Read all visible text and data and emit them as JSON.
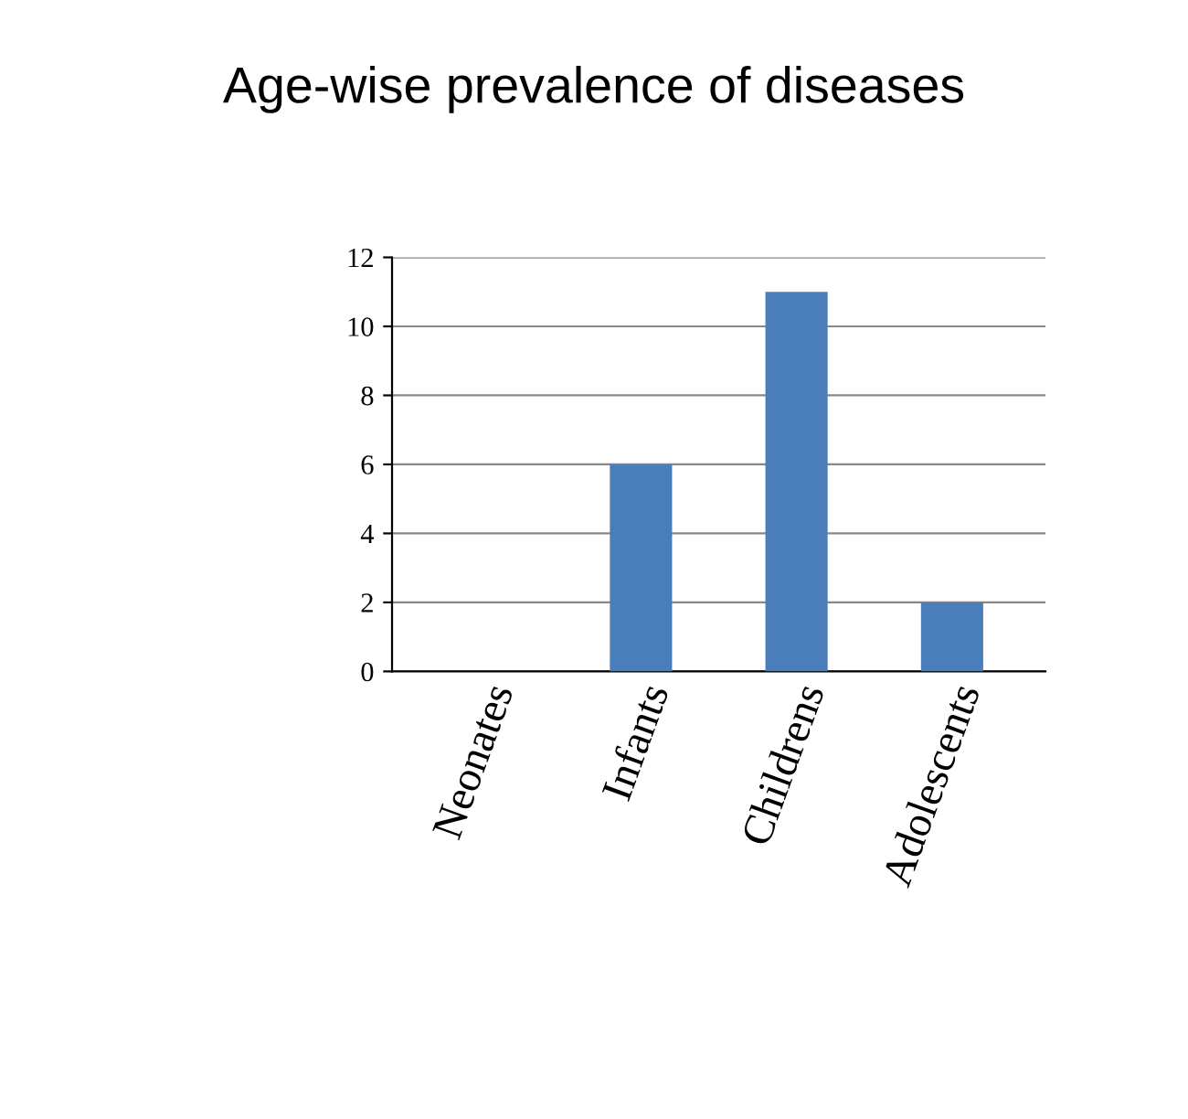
{
  "chart_data": {
    "type": "bar",
    "title": "Age-wise prevalence of diseases",
    "categories": [
      "Neonates",
      "Infants",
      "Childrens",
      "Adolescents"
    ],
    "values": [
      0,
      6,
      11,
      2
    ],
    "color": "#4a7ebb",
    "ylim": [
      0,
      12
    ],
    "yticks": [
      0,
      2,
      4,
      6,
      8,
      10,
      12
    ],
    "grid": "y"
  }
}
